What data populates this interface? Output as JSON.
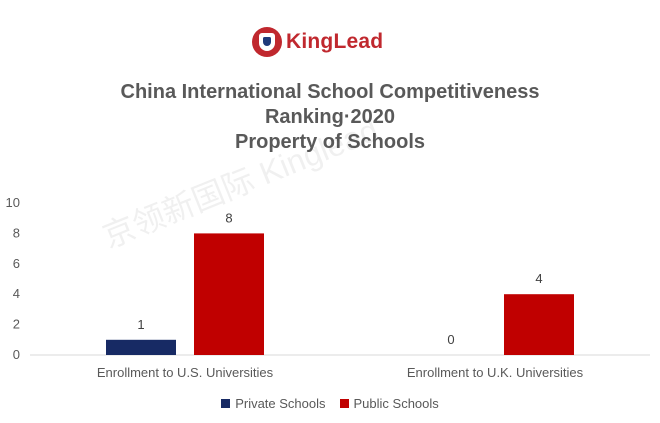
{
  "logo": {
    "text": "KingLead"
  },
  "title": {
    "line1": "China International School Competitiveness",
    "line2": "Ranking·2020",
    "line3": "Property of Schools"
  },
  "watermark": "京领新国际 Kinglead",
  "chart_data": {
    "type": "bar",
    "categories": [
      "Enrollment to U.S. Universities",
      "Enrollment to U.K. Universities"
    ],
    "series": [
      {
        "name": "Private Schools",
        "values": [
          1,
          0
        ],
        "color": "#172a64"
      },
      {
        "name": "Public Schools",
        "values": [
          8,
          4
        ],
        "color": "#c00000"
      }
    ],
    "ylim": [
      0,
      10
    ],
    "yticks": [
      0,
      2,
      4,
      6,
      8,
      10
    ],
    "grid": false,
    "legend": "bottom",
    "data_labels": true
  }
}
